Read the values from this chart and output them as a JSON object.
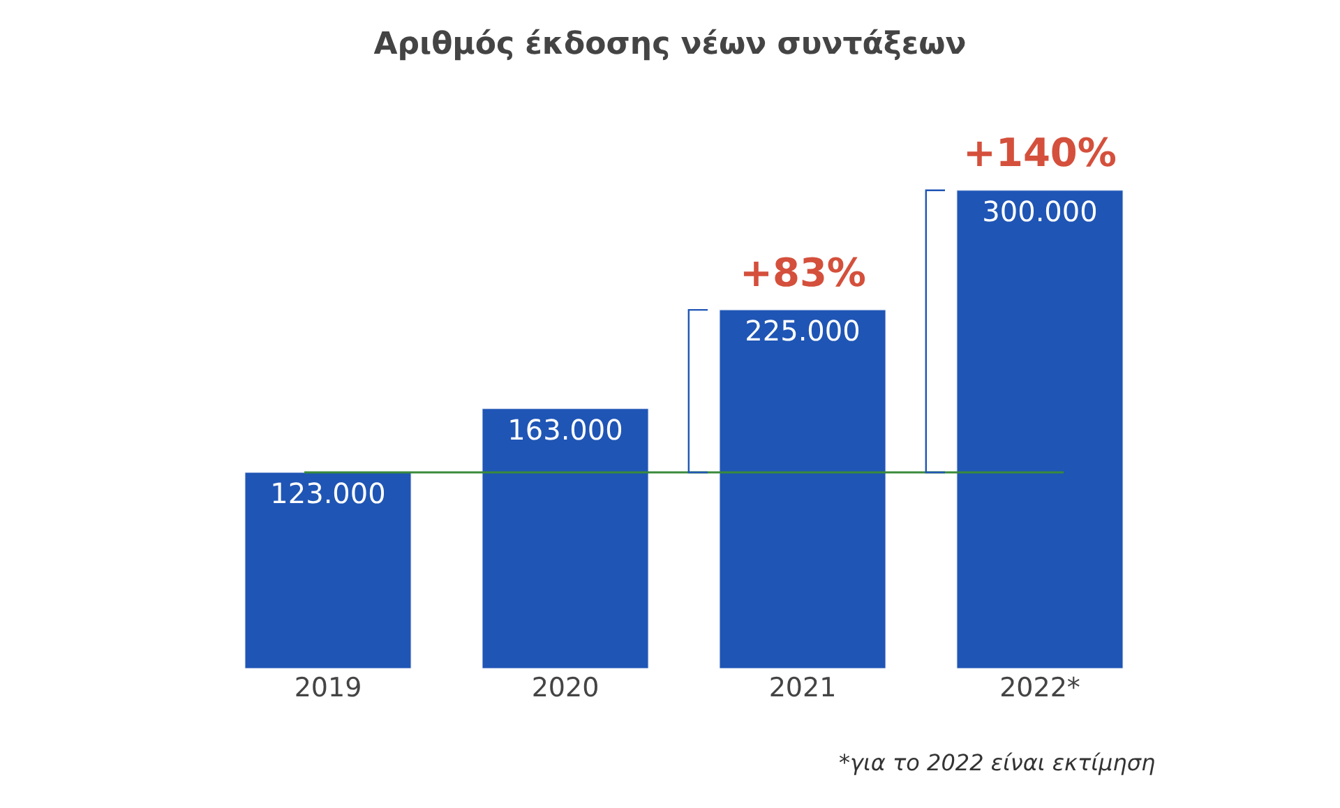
{
  "chart_data": {
    "type": "bar",
    "title": "Αριθμός έκδοσης νέων συντάξεων",
    "categories": [
      "2019",
      "2020",
      "2021",
      "2022*"
    ],
    "values": [
      123000,
      163000,
      225000,
      300000
    ],
    "value_labels": [
      "123.000",
      "163.000",
      "225.000",
      "300.000"
    ],
    "color": "#1f55b5",
    "ref_lines": [
      {
        "axis": "y",
        "value": 123000,
        "color": "#3a8a3a"
      }
    ],
    "annotations": [
      "+83%",
      "+140%",
      "*για το 2022 είναι εκτίμηση"
    ],
    "legend": false
  }
}
